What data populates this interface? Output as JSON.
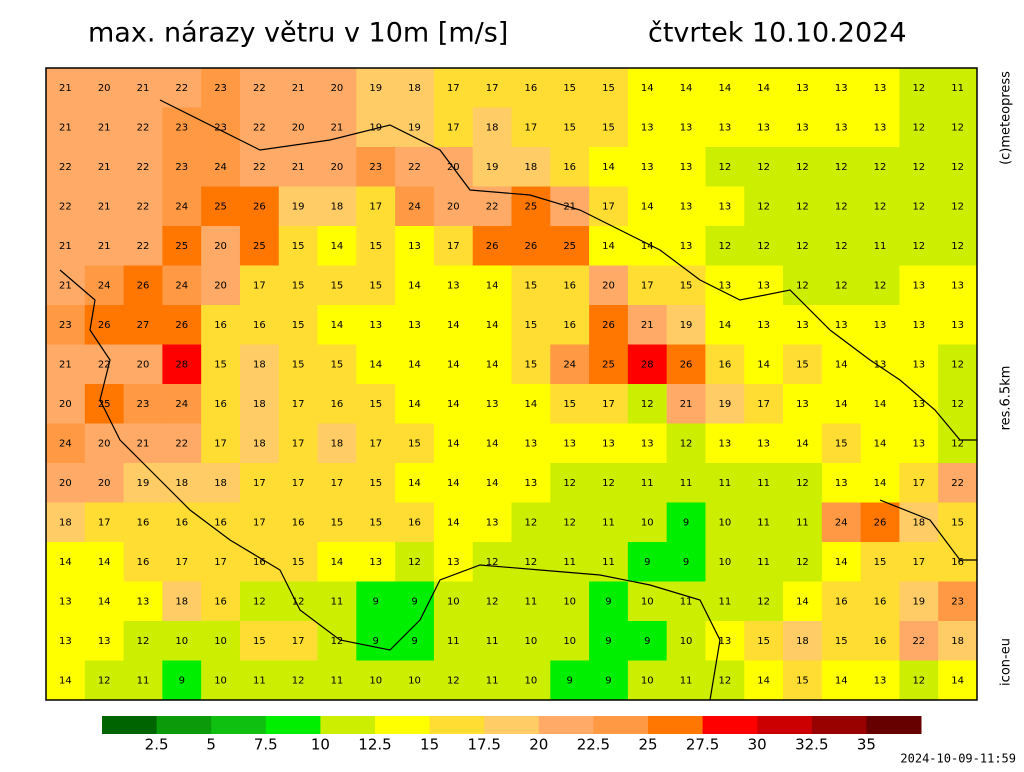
{
  "header": {
    "title": "max. nárazy větru v 10m [m/s]",
    "date": "čtvrtek 10.10.2024"
  },
  "side_labels": {
    "copyright": "(c)meteopress",
    "resolution": "res.6.5km",
    "model": "icon-eu"
  },
  "footer": {
    "timestamp": "2024-10-09-11:59"
  },
  "colorbar": {
    "ticks": [
      2.5,
      5,
      7.5,
      10,
      12.5,
      15,
      17.5,
      20,
      22.5,
      25,
      27.5,
      30,
      32.5,
      35
    ],
    "colors": [
      "#006400",
      "#0a9a0a",
      "#10c010",
      "#00ee00",
      "#ccee00",
      "#ffff00",
      "#ffdd33",
      "#ffcc66",
      "#ffaa66",
      "#ff9944",
      "#ff7700",
      "#ff0000",
      "#cc0000",
      "#990000",
      "#660000",
      "#400000"
    ]
  },
  "map": {
    "rows": [
      [
        21,
        20,
        21,
        22,
        23,
        22,
        21,
        20,
        19,
        18,
        17,
        17,
        16,
        15,
        15,
        14,
        14,
        14,
        14,
        13,
        13,
        13,
        12,
        11
      ],
      [
        21,
        21,
        22,
        23,
        23,
        22,
        20,
        21,
        19,
        19,
        17,
        18,
        17,
        15,
        15,
        13,
        13,
        13,
        13,
        13,
        13,
        13,
        12,
        12
      ],
      [
        22,
        21,
        22,
        23,
        24,
        22,
        21,
        20,
        23,
        22,
        20,
        19,
        18,
        16,
        14,
        13,
        13,
        12,
        12,
        12,
        12,
        12,
        12,
        12
      ],
      [
        22,
        21,
        22,
        24,
        25,
        26,
        19,
        18,
        17,
        24,
        20,
        22,
        25,
        21,
        17,
        14,
        13,
        13,
        12,
        12,
        12,
        12,
        12,
        12
      ],
      [
        21,
        21,
        22,
        25,
        20,
        25,
        15,
        14,
        15,
        13,
        17,
        26,
        26,
        25,
        14,
        14,
        13,
        12,
        12,
        12,
        12,
        11,
        12,
        12
      ],
      [
        21,
        24,
        26,
        24,
        20,
        17,
        15,
        15,
        15,
        14,
        13,
        14,
        15,
        16,
        20,
        17,
        15,
        13,
        13,
        12,
        12,
        12,
        13,
        13
      ],
      [
        23,
        26,
        27,
        26,
        16,
        16,
        15,
        14,
        13,
        13,
        14,
        14,
        15,
        16,
        26,
        21,
        19,
        14,
        13,
        13,
        13,
        13,
        13,
        13
      ],
      [
        21,
        22,
        20,
        28,
        15,
        18,
        15,
        15,
        14,
        14,
        14,
        14,
        15,
        24,
        25,
        28,
        26,
        16,
        14,
        15,
        14,
        13,
        13,
        12
      ],
      [
        20,
        25,
        23,
        24,
        16,
        18,
        17,
        16,
        15,
        14,
        14,
        13,
        14,
        15,
        17,
        12,
        21,
        19,
        17,
        13,
        14,
        14,
        13,
        12
      ],
      [
        24,
        20,
        21,
        22,
        17,
        18,
        17,
        18,
        17,
        15,
        14,
        14,
        13,
        13,
        13,
        13,
        12,
        13,
        13,
        14,
        15,
        14,
        13,
        12
      ],
      [
        20,
        20,
        19,
        18,
        18,
        17,
        17,
        17,
        15,
        14,
        14,
        14,
        13,
        12,
        12,
        11,
        11,
        11,
        11,
        12,
        13,
        14,
        17,
        22
      ],
      [
        18,
        17,
        16,
        16,
        16,
        17,
        16,
        15,
        15,
        16,
        14,
        13,
        12,
        12,
        11,
        10,
        9,
        10,
        11,
        11,
        24,
        26,
        18,
        15
      ],
      [
        14,
        14,
        16,
        17,
        17,
        16,
        15,
        14,
        13,
        12,
        13,
        12,
        12,
        11,
        11,
        9,
        9,
        10,
        11,
        12,
        14,
        15,
        17,
        16
      ],
      [
        13,
        14,
        13,
        18,
        16,
        12,
        12,
        11,
        9,
        9,
        10,
        12,
        11,
        10,
        9,
        10,
        11,
        11,
        12,
        14,
        16,
        16,
        19,
        23
      ],
      [
        13,
        13,
        12,
        10,
        10,
        15,
        17,
        12,
        9,
        9,
        11,
        11,
        10,
        10,
        9,
        9,
        10,
        13,
        15,
        18,
        15,
        16,
        22,
        18
      ],
      [
        14,
        12,
        11,
        9,
        10,
        11,
        12,
        11,
        10,
        10,
        12,
        11,
        10,
        9,
        9,
        10,
        11,
        12,
        14,
        15,
        14,
        13,
        12,
        14
      ]
    ]
  }
}
